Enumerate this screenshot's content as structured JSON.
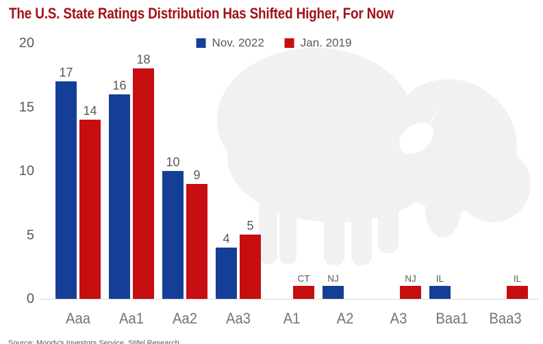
{
  "chart_data": {
    "type": "bar",
    "title": "The U.S. State Ratings Distribution Has Shifted Higher, For Now",
    "categories": [
      "Aaa",
      "Aa1",
      "Aa2",
      "Aa3",
      "A1",
      "A2",
      "A3",
      "Baa1",
      "Baa3"
    ],
    "series": [
      {
        "name": "Nov. 2022",
        "color": "#153F96",
        "values": [
          17,
          16,
          10,
          4,
          0,
          1,
          0,
          1,
          0
        ],
        "bar_labels": [
          "17",
          "16",
          "10",
          "4",
          "",
          "NJ",
          "",
          "IL",
          ""
        ]
      },
      {
        "name": "Jan. 2019",
        "color": "#C60D10",
        "values": [
          14,
          18,
          9,
          5,
          1,
          0,
          1,
          0,
          1
        ],
        "bar_labels": [
          "14",
          "18",
          "9",
          "5",
          "CT",
          "",
          "NJ",
          "",
          "IL"
        ]
      }
    ],
    "xlabel": "",
    "ylabel": "",
    "ylim": [
      0,
      20
    ],
    "yticks": [
      20,
      15,
      10,
      5,
      0
    ],
    "grid": false,
    "legend_position": "top-center"
  },
  "source_line": "Source: Moody's Investors Service, Stifel Research",
  "watermark": {
    "icon": "buffalo-silhouette",
    "color": "#F1F1F2"
  },
  "colors": {
    "title": "#A0121A",
    "background": "#FFFFFF",
    "axis_line": "#D9D9D9",
    "value_label_gray": "#595959",
    "xtick_gray": "#70757A"
  }
}
